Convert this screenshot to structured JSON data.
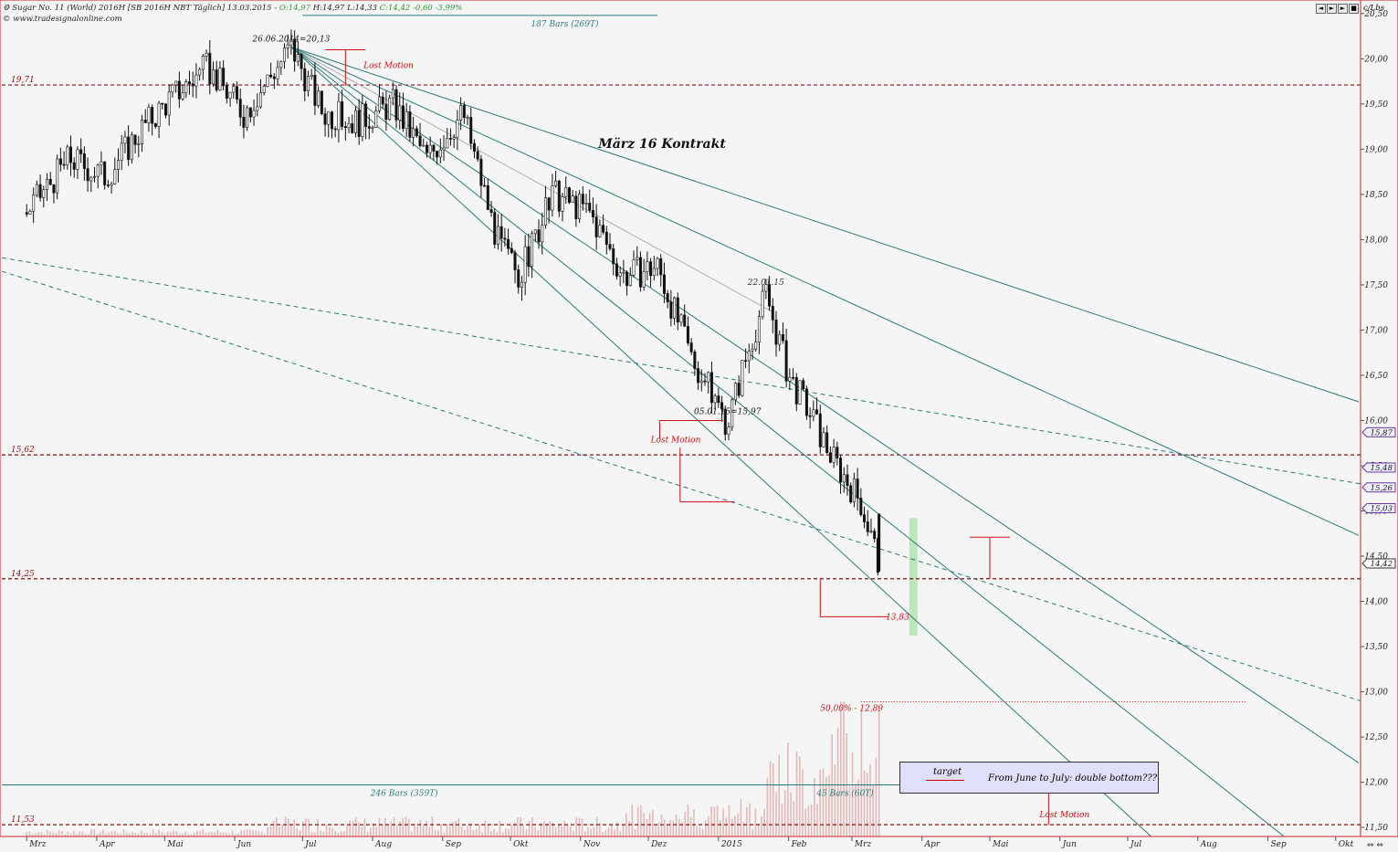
{
  "header": {
    "line1_prefix": "Sugar No. 11 (World) 2016H [SB 2016H NBT  Täglich] 13.03.2015 - ",
    "open": "O:14,97",
    "high": "H:14,97",
    "low": "L:14,33",
    "close_change": "C:14,42 -0,60 -3,99%",
    "source": "© www.tradesignalonline.com",
    "unit": "c/Lbs",
    "nav_buttons": [
      "◄",
      "►",
      "►",
      "■"
    ]
  },
  "colors": {
    "background": "#f5f5f5",
    "frame": "#cc2222",
    "trend": "#2a7a7a",
    "level": "#8a1010",
    "annotation": "#cc1111",
    "volume": "#e2b9b9",
    "target_zone": "#bde6bd"
  },
  "chart_data": {
    "type": "candlestick",
    "title": "März 16 Kontrakt",
    "y_axis": {
      "ticks": [
        "20,50",
        "20,00",
        "19,50",
        "19,00",
        "18,50",
        "18,00",
        "17,50",
        "17,00",
        "16,50",
        "16,00",
        "15,50",
        "15,00",
        "14,50",
        "14,00",
        "13,50",
        "13,00",
        "12,50",
        "12,00",
        "11,50"
      ],
      "min": 11.4,
      "max": 20.65,
      "position": "right"
    },
    "x_axis": {
      "labels": [
        "Mrz",
        "Apr",
        "Mai",
        "Jun",
        "Jul",
        "Aug",
        "Sep",
        "Okt",
        "Nov",
        "Dez",
        "2015",
        "Feb",
        "Mrz",
        "Apr",
        "Mai",
        "Jun",
        "Jul",
        "Aug",
        "Sep",
        "Okt"
      ],
      "range": [
        "2014-03",
        "2015-10"
      ]
    },
    "price_path": [
      [
        "2014-03-01",
        18.3
      ],
      [
        "2014-03-20",
        18.9
      ],
      [
        "2014-04-05",
        18.7
      ],
      [
        "2014-04-20",
        19.2
      ],
      [
        "2014-05-05",
        19.6
      ],
      [
        "2014-05-20",
        19.9
      ],
      [
        "2014-06-05",
        19.4
      ],
      [
        "2014-06-26",
        20.13
      ],
      [
        "2014-07-10",
        19.4
      ],
      [
        "2014-07-25",
        19.3
      ],
      [
        "2014-08-10",
        19.5
      ],
      [
        "2014-08-25",
        18.9
      ],
      [
        "2014-09-10",
        19.4
      ],
      [
        "2014-09-25",
        18.0
      ],
      [
        "2014-10-05",
        17.6
      ],
      [
        "2014-10-20",
        18.5
      ],
      [
        "2014-11-05",
        18.3
      ],
      [
        "2014-11-20",
        17.6
      ],
      [
        "2014-12-05",
        17.7
      ],
      [
        "2014-12-20",
        16.7
      ],
      [
        "2015-01-05",
        15.97
      ],
      [
        "2015-01-12",
        16.6
      ],
      [
        "2015-01-22",
        17.4
      ],
      [
        "2015-02-01",
        16.5
      ],
      [
        "2015-02-10",
        16.1
      ],
      [
        "2015-02-20",
        15.6
      ],
      [
        "2015-03-05",
        15.1
      ],
      [
        "2015-03-13",
        14.42
      ]
    ],
    "last_close": 14.42,
    "price_tags": [
      "15,87",
      "15,48",
      "15,26",
      "15,03",
      "14,42"
    ],
    "support_resistance_levels": [
      {
        "value": 19.71,
        "label": "19,71"
      },
      {
        "value": 15.62,
        "label": "15,62"
      },
      {
        "value": 14.25,
        "label": "14,25"
      },
      {
        "value": 11.53,
        "label": "11,53"
      }
    ],
    "annotations": [
      {
        "text": "26.06.2014=20,13",
        "date": "2014-06-26",
        "value": 20.13
      },
      {
        "text": "22.01.15",
        "date": "2015-01-22",
        "value": 17.4
      },
      {
        "text": "05.01.15=15,97",
        "date": "2015-01-05",
        "value": 15.97
      },
      {
        "text": "13,83",
        "value": 13.83
      },
      {
        "text": "50,00% - 12,89",
        "value": 12.89
      },
      {
        "text": "187 Bars (269T)"
      },
      {
        "text": "246 Bars (359T)"
      },
      {
        "text": "45 Bars (60T)"
      },
      {
        "text": "Lost Motion"
      },
      {
        "text": "Lost Motion"
      },
      {
        "text": "Lost Motion"
      }
    ],
    "target_range": [
      13.62,
      14.92
    ],
    "volume": "bars at bottom of chart",
    "grid": false,
    "legend": {
      "position": "bottom-right",
      "entries": [
        "target",
        "From June to July: double bottom???"
      ]
    }
  }
}
